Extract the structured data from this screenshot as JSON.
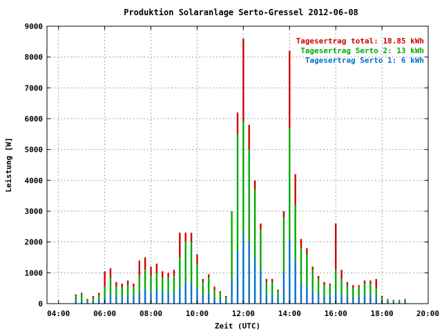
{
  "chart_data": {
    "type": "bar",
    "title": "Produktion Solaranlage Serto-Gressel 2012-06-08",
    "xlabel": "Zeit (UTC)",
    "ylabel": "Leistung [W]",
    "ylim": [
      0,
      9000
    ],
    "xlim": [
      "03:30",
      "20:00"
    ],
    "grid": true,
    "stacked": true,
    "x_ticks": [
      "04:00",
      "06:00",
      "08:00",
      "10:00",
      "12:00",
      "14:00",
      "16:00",
      "18:00",
      "20:00"
    ],
    "y_ticks": [
      "0",
      "1000",
      "2000",
      "3000",
      "4000",
      "5000",
      "6000",
      "7000",
      "8000",
      "9000"
    ],
    "legend_position": "top-right",
    "legend": [
      {
        "label": "Tagesertrag total: 18.85 kWh",
        "color": "#cc0000"
      },
      {
        "label": "Tagesertrag Serto 2: 13 kWh",
        "color": "#00aa00"
      },
      {
        "label": "Tagesertrag Serto 1: 6 kWh",
        "color": "#0070cc"
      }
    ],
    "x": [
      "04:45",
      "05:00",
      "05:15",
      "05:30",
      "05:45",
      "06:00",
      "06:15",
      "06:30",
      "06:45",
      "07:00",
      "07:15",
      "07:30",
      "07:45",
      "08:00",
      "08:15",
      "08:30",
      "08:45",
      "09:00",
      "09:15",
      "09:30",
      "09:45",
      "10:00",
      "10:15",
      "10:30",
      "10:45",
      "11:00",
      "11:15",
      "11:30",
      "11:45",
      "12:00",
      "12:15",
      "12:30",
      "12:45",
      "13:00",
      "13:15",
      "13:30",
      "13:45",
      "14:00",
      "14:15",
      "14:30",
      "14:45",
      "15:00",
      "15:15",
      "15:30",
      "15:45",
      "16:00",
      "16:15",
      "16:30",
      "16:45",
      "17:00",
      "17:15",
      "17:30",
      "17:45",
      "18:00",
      "18:15",
      "18:30",
      "18:45",
      "19:00"
    ],
    "series": [
      {
        "name": "Tagesertrag Serto 1: 6 kWh",
        "color": "#0070cc",
        "values": [
          100,
          100,
          60,
          80,
          120,
          200,
          300,
          250,
          220,
          250,
          250,
          350,
          450,
          350,
          450,
          400,
          350,
          350,
          500,
          700,
          700,
          500,
          300,
          350,
          200,
          150,
          100,
          800,
          1700,
          2300,
          2000,
          1500,
          1100,
          300,
          300,
          200,
          1000,
          2100,
          1400,
          700,
          600,
          400,
          300,
          250,
          250,
          400,
          300,
          250,
          200,
          250,
          300,
          300,
          200,
          100,
          80,
          50,
          50,
          80
        ]
      },
      {
        "name": "Tagesertrag Serto 2: 13 kWh",
        "color": "#00aa00",
        "values": [
          150,
          200,
          50,
          100,
          150,
          350,
          550,
          300,
          300,
          350,
          300,
          550,
          650,
          550,
          550,
          450,
          500,
          550,
          1000,
          1300,
          1300,
          800,
          400,
          500,
          250,
          200,
          100,
          2200,
          3800,
          3600,
          3000,
          2200,
          1300,
          400,
          400,
          200,
          1800,
          3600,
          1800,
          1100,
          1000,
          700,
          500,
          350,
          350,
          700,
          500,
          350,
          300,
          300,
          350,
          350,
          300,
          100,
          50,
          50,
          50,
          50
        ]
      },
      {
        "name": "Tagesertrag total: 18.85 kWh",
        "color": "#cc0000",
        "values": [
          50,
          50,
          40,
          70,
          80,
          500,
          300,
          150,
          130,
          150,
          100,
          500,
          400,
          300,
          300,
          200,
          150,
          200,
          800,
          300,
          300,
          300,
          100,
          100,
          100,
          50,
          50,
          0,
          700,
          2700,
          800,
          300,
          200,
          100,
          100,
          50,
          200,
          2500,
          1000,
          300,
          200,
          100,
          100,
          100,
          50,
          1500,
          300,
          100,
          100,
          50,
          100,
          100,
          300,
          50,
          20,
          20,
          20,
          20
        ]
      }
    ]
  }
}
